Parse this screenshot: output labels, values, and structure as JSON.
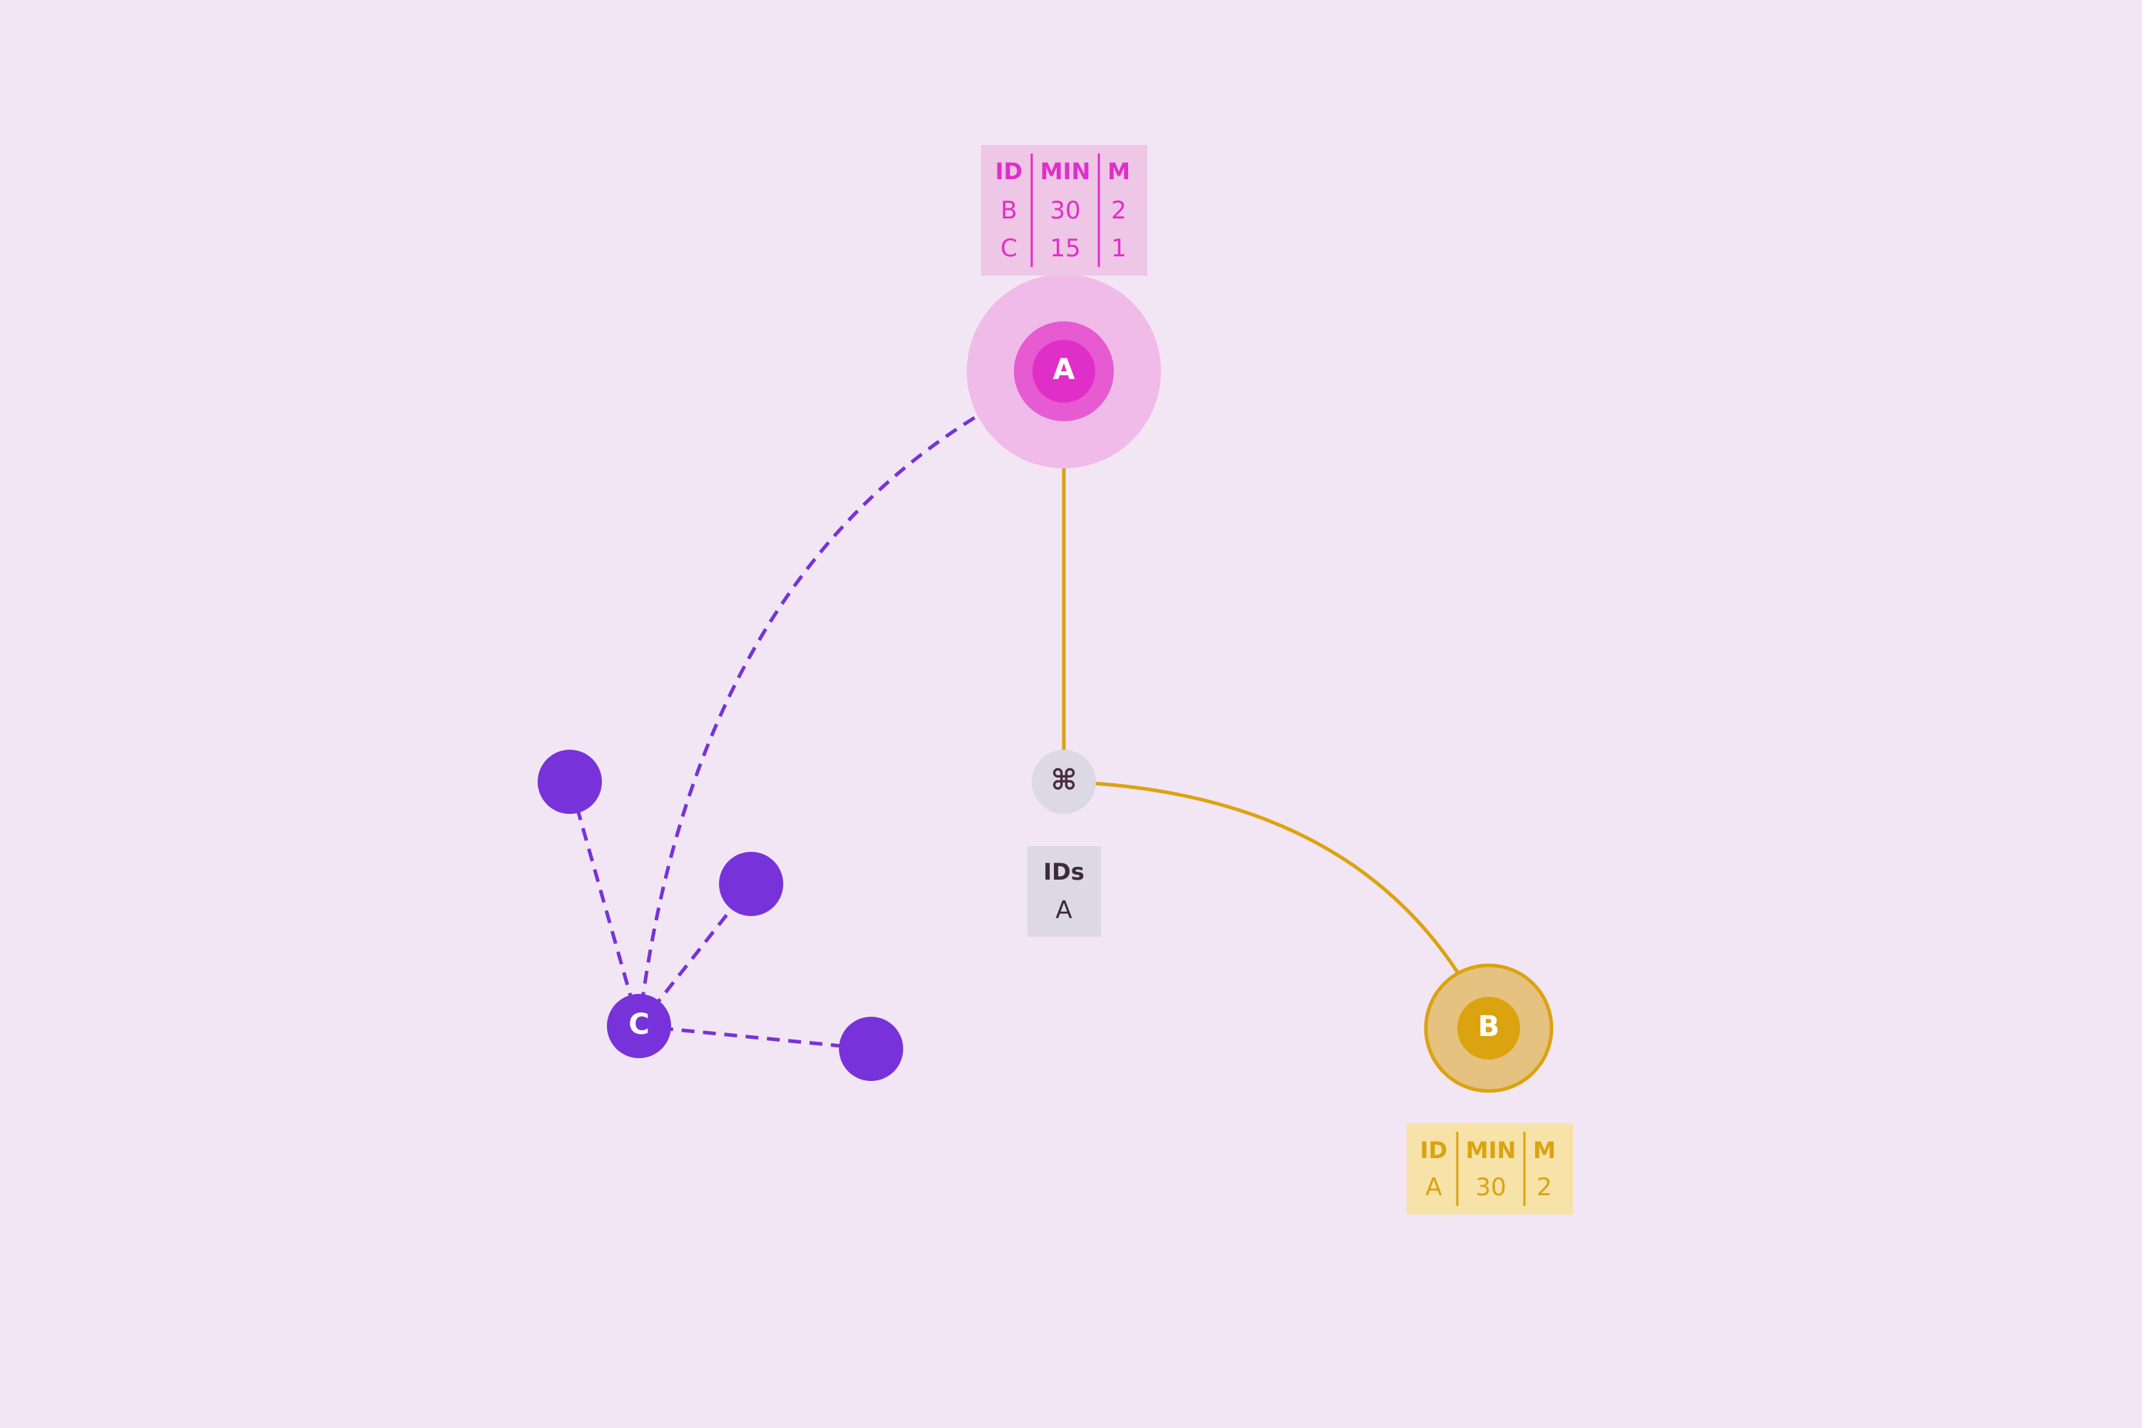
{
  "colors": {
    "background": "#f3e6f4",
    "node_a": "#e02fc8",
    "node_b": "#dba310",
    "node_c": "#7733d9",
    "hub": "#dcd8e6",
    "link_gold": "#dba310",
    "link_purple": "#7733d9"
  },
  "nodes": {
    "a": {
      "label": "A"
    },
    "b": {
      "label": "B"
    },
    "c": {
      "label": "C"
    },
    "hub": {
      "icon": "command-icon",
      "glyph": "⌘"
    }
  },
  "table_a": {
    "headers": [
      "ID",
      "MIN",
      "M"
    ],
    "rows": [
      [
        "B",
        "30",
        "2"
      ],
      [
        "C",
        "15",
        "1"
      ]
    ]
  },
  "table_b": {
    "headers": [
      "ID",
      "MIN",
      "M"
    ],
    "rows": [
      [
        "A",
        "30",
        "2"
      ]
    ]
  },
  "hub_table": {
    "header": "IDs",
    "rows": [
      "A"
    ]
  }
}
